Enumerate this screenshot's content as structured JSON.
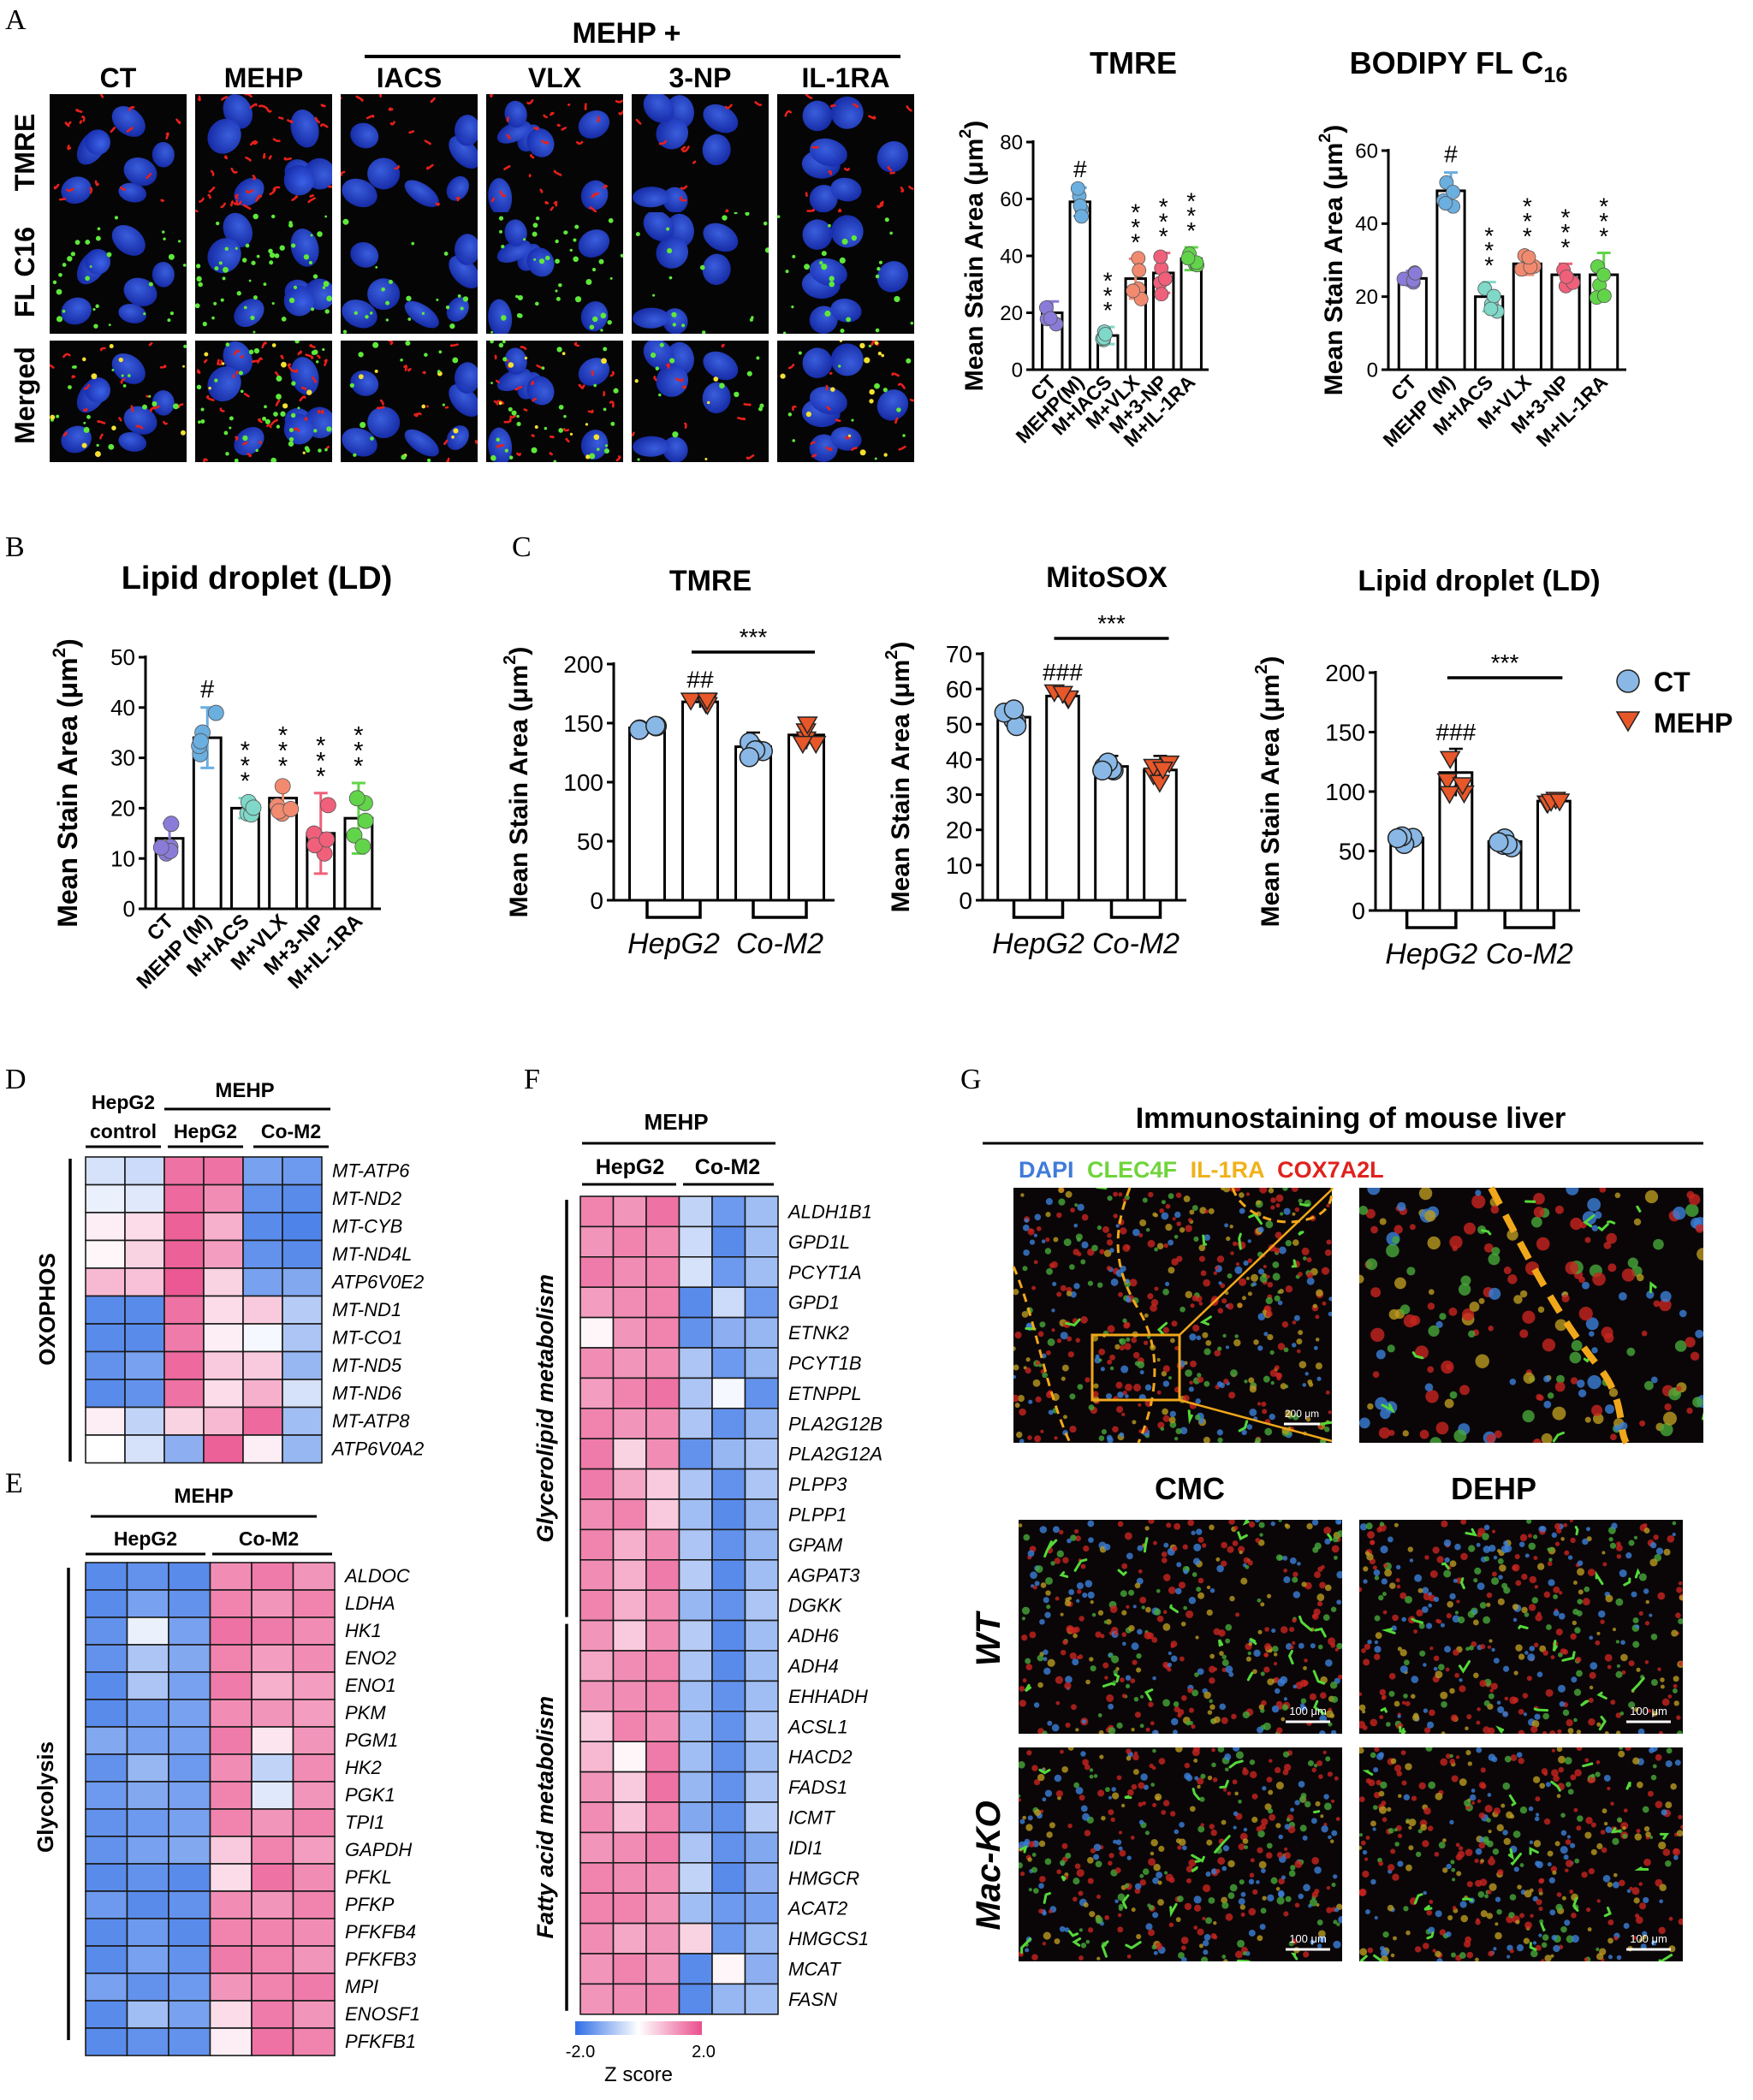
{
  "panel_letters": [
    "A",
    "B",
    "C",
    "D",
    "E",
    "F",
    "G"
  ],
  "panelA": {
    "group_header": "MEHP +",
    "columns": [
      "CT",
      "MEHP",
      "IACS",
      "VLX",
      "3-NP",
      "IL-1RA"
    ],
    "rows": [
      "TMRE",
      "FL C16",
      "Merged"
    ]
  },
  "colors": {
    "CT": "#8b7bd8",
    "MEHP": "#6baee0",
    "IACS": "#7fd8c8",
    "VLX": "#f28a70",
    "3NP": "#f0607a",
    "IL1RA": "#62d44a",
    "hep_ct": "#8ab8e6",
    "mehp_tri": "#e8572a",
    "heat_low": "#2f6ee6",
    "heat_mid": "#ffffff",
    "heat_high": "#ea4f8d"
  },
  "chart_data": [
    {
      "id": "A_TMRE",
      "type": "bar",
      "title": "TMRE",
      "ylabel": "Mean Stain Area (μm",
      "ylabel_sup": "2",
      "ylabel_close": ")",
      "ylim": [
        0,
        80
      ],
      "yticks": [
        "0",
        "20",
        "40",
        "60",
        "80"
      ],
      "categories": [
        "CT",
        "MEHP(M)",
        "M+IACS",
        "M+VLX",
        "M+3-NP",
        "M+IL-1RA"
      ],
      "values": [
        20,
        59,
        12,
        32,
        34,
        39
      ],
      "errors": [
        4,
        5,
        3,
        7,
        7,
        4
      ],
      "annotations": [
        "",
        "#",
        "***",
        "***",
        "***",
        "***"
      ]
    },
    {
      "id": "A_BODIPY",
      "type": "bar",
      "title": "BODIPY FL C",
      "title_sub": "16",
      "ylabel": "Mean Stain Area (μm",
      "ylabel_sup": "2",
      "ylabel_close": ")",
      "ylim": [
        0,
        60
      ],
      "yticks": [
        "0",
        "20",
        "40",
        "60"
      ],
      "categories": [
        "CT",
        "MEHP (M)",
        "M+IACS",
        "M+VLX",
        "M+3-NP",
        "M+IL-1RA"
      ],
      "values": [
        25,
        49,
        20,
        29,
        26,
        26
      ],
      "errors": [
        2,
        5,
        4,
        3,
        3,
        6
      ],
      "annotations": [
        "",
        "#",
        "***",
        "***",
        "***",
        "***"
      ]
    },
    {
      "id": "B_LD",
      "type": "bar",
      "title": "Lipid droplet (LD)",
      "ylabel": "Mean Stain Area (μm",
      "ylabel_sup": "2",
      "ylabel_close": ")",
      "ylim": [
        0,
        50
      ],
      "yticks": [
        "0",
        "10",
        "20",
        "30",
        "40",
        "50"
      ],
      "categories": [
        "CT",
        "MEHP (M)",
        "M+IACS",
        "M+VLX",
        "M+3-NP",
        "M+IL-1RA"
      ],
      "values": [
        14,
        34,
        20,
        22,
        15,
        18
      ],
      "errors": [
        3,
        6,
        2,
        3,
        8,
        7
      ],
      "annotations": [
        "",
        "#",
        "***",
        "***",
        "***",
        "***"
      ]
    },
    {
      "id": "C_TMRE",
      "type": "bar",
      "title": "TMRE",
      "ylabel": "Mean Stain Area (μm",
      "ylabel_sup": "2",
      "ylabel_close": ")",
      "ylim": [
        0,
        200
      ],
      "yticks": [
        "0",
        "50",
        "100",
        "150",
        "200"
      ],
      "groups": [
        "HepG2",
        "Co-M2"
      ],
      "series": [
        {
          "name": "CT",
          "values": [
            146,
            130
          ]
        },
        {
          "name": "MEHP",
          "values": [
            168,
            140
          ]
        }
      ],
      "errors": [
        [
          4,
          12
        ],
        [
          5,
          12
        ]
      ],
      "annotations": [
        "##",
        ""
      ],
      "comparison": "***"
    },
    {
      "id": "C_MitoSOX",
      "type": "bar",
      "title": "MitoSOX",
      "ylabel": "Mean Stain Area (μm",
      "ylabel_sup": "2",
      "ylabel_close": ")",
      "ylim": [
        0,
        70
      ],
      "yticks": [
        "0",
        "10",
        "20",
        "30",
        "40",
        "50",
        "60",
        "70"
      ],
      "groups": [
        "HepG2",
        "Co-M2"
      ],
      "series": [
        {
          "name": "CT",
          "values": [
            52,
            38
          ]
        },
        {
          "name": "MEHP",
          "values": [
            58,
            37
          ]
        }
      ],
      "errors": [
        [
          3,
          3
        ],
        [
          2,
          4
        ]
      ],
      "annotations": [
        "###",
        ""
      ],
      "comparison": "***"
    },
    {
      "id": "C_LD",
      "type": "bar",
      "title": "Lipid droplet (LD)",
      "ylabel": "Mean Stain Area (μm",
      "ylabel_sup": "2",
      "ylabel_close": ")",
      "ylim": [
        0,
        200
      ],
      "yticks": [
        "0",
        "50",
        "100",
        "150",
        "200"
      ],
      "groups": [
        "HepG2",
        "Co-M2"
      ],
      "series": [
        {
          "name": "CT",
          "values": [
            61,
            58
          ]
        },
        {
          "name": "MEHP",
          "values": [
            116,
            92
          ]
        }
      ],
      "errors": [
        [
          6,
          8
        ],
        [
          20,
          5
        ]
      ],
      "annotations": [
        "###",
        ""
      ],
      "comparison": "***",
      "legend": {
        "placement": "right",
        "entries": [
          "CT",
          "MEHP"
        ]
      }
    },
    {
      "id": "D",
      "type": "heatmap",
      "header_mehp": "MEHP",
      "col_groups": [
        "HepG2 control",
        "HepG2",
        "Co-M2"
      ],
      "col_group_lines": [
        "HepG2",
        "control"
      ],
      "row_group": "OXOPHOS",
      "rows": [
        "MT-ATP6",
        "MT-ND2",
        "MT-CYB",
        "MT-ND4L",
        "ATP6V0E2",
        "MT-ND1",
        "MT-CO1",
        "MT-ND5",
        "MT-ND6",
        "MT-ATP8",
        "ATP6V0A2"
      ],
      "values": [
        [
          -0.4,
          -0.5,
          1.6,
          1.6,
          -1.3,
          -1.4
        ],
        [
          -0.2,
          -0.3,
          1.7,
          1.3,
          -1.5,
          -1.6
        ],
        [
          0.2,
          0.4,
          1.8,
          0.9,
          -1.6,
          -1.7
        ],
        [
          0.1,
          0.5,
          1.8,
          1.1,
          -1.5,
          -1.6
        ],
        [
          0.8,
          0.7,
          1.9,
          0.5,
          -1.3,
          -1.2
        ],
        [
          -1.6,
          -1.6,
          1.6,
          0.4,
          0.6,
          -0.7
        ],
        [
          -1.6,
          -1.6,
          1.5,
          0.2,
          -0.1,
          -0.8
        ],
        [
          -1.5,
          -1.3,
          1.7,
          0.6,
          0.6,
          -1.0
        ],
        [
          -1.6,
          -1.5,
          1.6,
          0.4,
          0.9,
          -0.4
        ],
        [
          0.2,
          -0.6,
          0.5,
          0.8,
          1.7,
          -0.9
        ],
        [
          0.0,
          -0.4,
          -1.1,
          1.8,
          0.2,
          -1.0
        ]
      ]
    },
    {
      "id": "E",
      "type": "heatmap",
      "header_mehp": "MEHP",
      "col_groups": [
        "HepG2",
        "Co-M2"
      ],
      "row_group": "Glycolysis",
      "rows": [
        "ALDOC",
        "LDHA",
        "HK1",
        "ENO2",
        "ENO1",
        "PKM",
        "PGM1",
        "HK2",
        "PGK1",
        "TPI1",
        "GAPDH",
        "PFKL",
        "PFKP",
        "PFKFB4",
        "PFKFB3",
        "MPI",
        "ENOSF1",
        "PFKFB1"
      ],
      "values": [
        [
          -1.6,
          -1.5,
          -1.6,
          1.3,
          1.5,
          1.2
        ],
        [
          -1.6,
          -1.3,
          -1.5,
          1.4,
          1.2,
          1.4
        ],
        [
          -1.5,
          -0.2,
          -1.3,
          1.6,
          1.5,
          1.3
        ],
        [
          -1.5,
          -0.8,
          -1.2,
          1.4,
          1.1,
          1.3
        ],
        [
          -1.6,
          -0.8,
          -1.3,
          1.5,
          0.9,
          1.1
        ],
        [
          -1.6,
          -1.4,
          -1.3,
          1.3,
          1.2,
          1.1
        ],
        [
          -1.2,
          -1.3,
          -1.3,
          1.5,
          0.3,
          1.2
        ],
        [
          -1.5,
          -1.0,
          -1.4,
          1.3,
          -0.6,
          1.3
        ],
        [
          -1.4,
          -1.2,
          -1.3,
          1.4,
          -0.3,
          1.2
        ],
        [
          -1.5,
          -1.4,
          -1.3,
          1.4,
          1.2,
          1.4
        ],
        [
          -1.5,
          -1.3,
          -1.2,
          0.6,
          1.4,
          1.1
        ],
        [
          -1.6,
          -1.5,
          -1.6,
          0.4,
          1.6,
          1.3
        ],
        [
          -1.4,
          -1.6,
          -1.5,
          1.3,
          1.2,
          1.4
        ],
        [
          -1.6,
          -1.4,
          -1.6,
          1.4,
          1.4,
          1.3
        ],
        [
          -1.6,
          -1.3,
          -1.5,
          1.5,
          1.4,
          1.2
        ],
        [
          -1.3,
          -1.5,
          -1.4,
          1.2,
          1.4,
          1.5
        ],
        [
          -1.6,
          -0.9,
          -1.3,
          0.4,
          1.5,
          1.2
        ],
        [
          -1.6,
          -1.5,
          -1.5,
          0.2,
          1.6,
          1.4
        ]
      ]
    },
    {
      "id": "F",
      "type": "heatmap",
      "header_mehp": "MEHP",
      "col_groups": [
        "HepG2",
        "Co-M2"
      ],
      "row_groups": [
        {
          "label": "Glycerolipid metabolism",
          "count": 14
        },
        {
          "label": "Fatty acid metabolism",
          "count": 13
        }
      ],
      "rows": [
        "ALDH1B1",
        "GPD1L",
        "PCYT1A",
        "GPD1",
        "ETNK2",
        "PCYT1B",
        "ETNPPL",
        "PLA2G12B",
        "PLA2G12A",
        "PLPP3",
        "PLPP1",
        "GPAM",
        "AGPAT3",
        "DGKK",
        "ADH6",
        "ADH4",
        "EHHADH",
        "ACSL1",
        "HACD2",
        "FADS1",
        "ICMT",
        "IDI1",
        "HMGCR",
        "ACAT2",
        "HMGCS1",
        "MCAT",
        "FASN"
      ],
      "values": [
        [
          1.4,
          1.2,
          1.6,
          -0.6,
          -1.4,
          -0.9
        ],
        [
          1.2,
          1.4,
          1.3,
          -0.5,
          -1.6,
          -0.9
        ],
        [
          1.5,
          1.3,
          1.4,
          -0.4,
          -1.4,
          -0.9
        ],
        [
          1.1,
          1.3,
          1.4,
          -1.6,
          -0.5,
          -1.4
        ],
        [
          0.1,
          1.2,
          1.4,
          -1.5,
          -1.1,
          -1.0
        ],
        [
          1.3,
          1.2,
          1.3,
          -0.8,
          -1.4,
          -1.0
        ],
        [
          1.1,
          1.4,
          1.6,
          -0.8,
          -0.1,
          -1.5
        ],
        [
          1.4,
          1.2,
          1.3,
          -0.8,
          -1.5,
          -1.0
        ],
        [
          1.5,
          0.5,
          1.3,
          -1.5,
          -1.0,
          -0.8
        ],
        [
          1.5,
          1.0,
          0.6,
          -0.8,
          -1.5,
          -0.8
        ],
        [
          1.3,
          1.4,
          0.6,
          -0.9,
          -1.6,
          -1.0
        ],
        [
          1.4,
          0.9,
          1.3,
          -0.8,
          -1.5,
          -1.0
        ],
        [
          1.3,
          0.9,
          1.5,
          -0.7,
          -1.6,
          -0.9
        ],
        [
          1.4,
          0.9,
          1.3,
          -1.0,
          -1.5,
          -0.8
        ],
        [
          1.2,
          0.6,
          1.3,
          -0.7,
          -1.6,
          -0.9
        ],
        [
          1.0,
          1.3,
          1.4,
          -0.8,
          -1.6,
          -0.9
        ],
        [
          1.2,
          1.3,
          1.4,
          -0.9,
          -1.5,
          -0.9
        ],
        [
          0.6,
          1.4,
          1.3,
          -0.9,
          -1.5,
          -0.8
        ],
        [
          0.8,
          0.1,
          1.5,
          -0.9,
          -1.5,
          -0.9
        ],
        [
          1.2,
          0.6,
          1.6,
          -1.0,
          -1.5,
          -0.8
        ],
        [
          1.3,
          0.7,
          1.4,
          -1.2,
          -1.5,
          -0.7
        ],
        [
          1.2,
          1.3,
          1.5,
          -0.8,
          -1.5,
          -1.2
        ],
        [
          1.4,
          1.3,
          1.3,
          -0.6,
          -1.6,
          -1.1
        ],
        [
          1.4,
          1.4,
          1.2,
          -0.9,
          -1.4,
          -1.3
        ],
        [
          1.3,
          1.0,
          1.2,
          0.5,
          -1.4,
          -1.0
        ],
        [
          1.2,
          1.4,
          1.2,
          -1.6,
          0.1,
          -1.1
        ],
        [
          1.2,
          1.3,
          1.4,
          -1.6,
          -1.0,
          -0.9
        ]
      ],
      "colorbar": {
        "min_label": "-2.0",
        "max_label": "2.0",
        "label": "Z score"
      }
    }
  ],
  "panelG": {
    "title": "Immunostaining of mouse liver",
    "stains": [
      {
        "label": "DAPI",
        "color": "#3f7bd9"
      },
      {
        "label": "CLEC4F",
        "color": "#6fd43a"
      },
      {
        "label": "IL-1RA",
        "color": "#f0b21a"
      },
      {
        "label": "COX7A2L",
        "color": "#e0221d"
      }
    ],
    "scale_top": "200 μm",
    "scale_bottom": "100 μm",
    "columns": [
      "CMC",
      "DEHP"
    ],
    "rows": [
      "WT",
      "Mac-KO"
    ]
  }
}
